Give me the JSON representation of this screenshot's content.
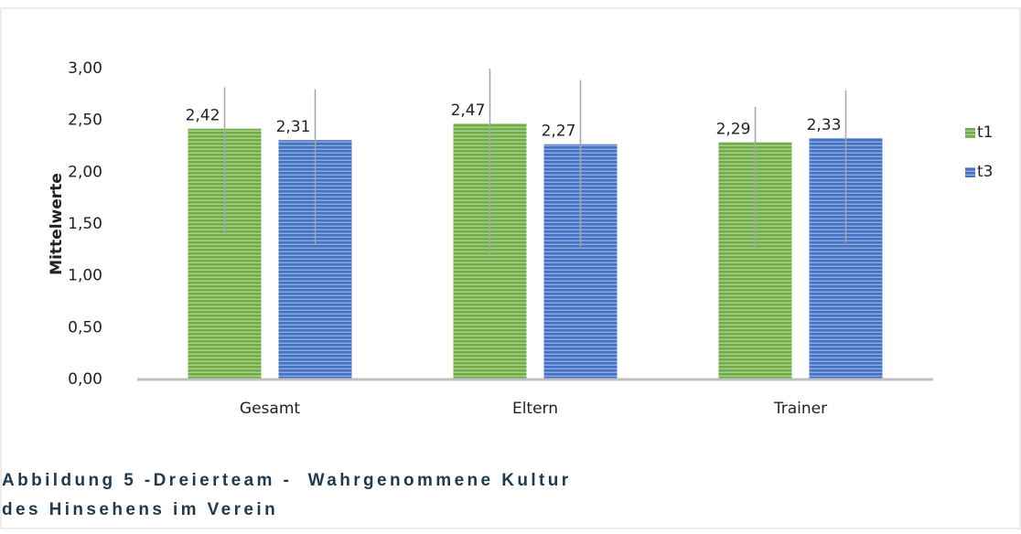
{
  "chart_data": {
    "type": "bar",
    "y_axis_label": "Mittelwerte",
    "categories": [
      "Gesamt",
      "Eltern",
      "Trainer"
    ],
    "series": [
      {
        "name": "t1",
        "color": "#70ad47",
        "values": [
          2.42,
          2.47,
          2.29
        ],
        "value_labels": [
          "2,42",
          "2,47",
          "2,29"
        ],
        "errors_plus": [
          0.4,
          0.53,
          0.34
        ],
        "errors_minus": [
          1.01,
          1.26,
          1.01
        ]
      },
      {
        "name": "t3",
        "color": "#4472c4",
        "values": [
          2.31,
          2.27,
          2.33
        ],
        "value_labels": [
          "2,31",
          "2,27",
          "2,33"
        ],
        "errors_plus": [
          0.49,
          0.62,
          0.46
        ],
        "errors_minus": [
          1.01,
          0.99,
          1.01
        ]
      }
    ],
    "ylim": [
      0,
      3
    ],
    "yticks": [
      {
        "value": 0,
        "label": "0,00"
      },
      {
        "value": 0.5,
        "label": "0,50"
      },
      {
        "value": 1,
        "label": "1,00"
      },
      {
        "value": 1.5,
        "label": "1,50"
      },
      {
        "value": 2,
        "label": "2,00"
      },
      {
        "value": 2.5,
        "label": "2,50"
      },
      {
        "value": 3,
        "label": "3,00"
      }
    ],
    "grid": false,
    "legend": "right",
    "caption": [
      "Abbildung 5 -Dreierteam -  Wahrgenommene Kultur",
      "des Hinsehens im Verein"
    ]
  }
}
